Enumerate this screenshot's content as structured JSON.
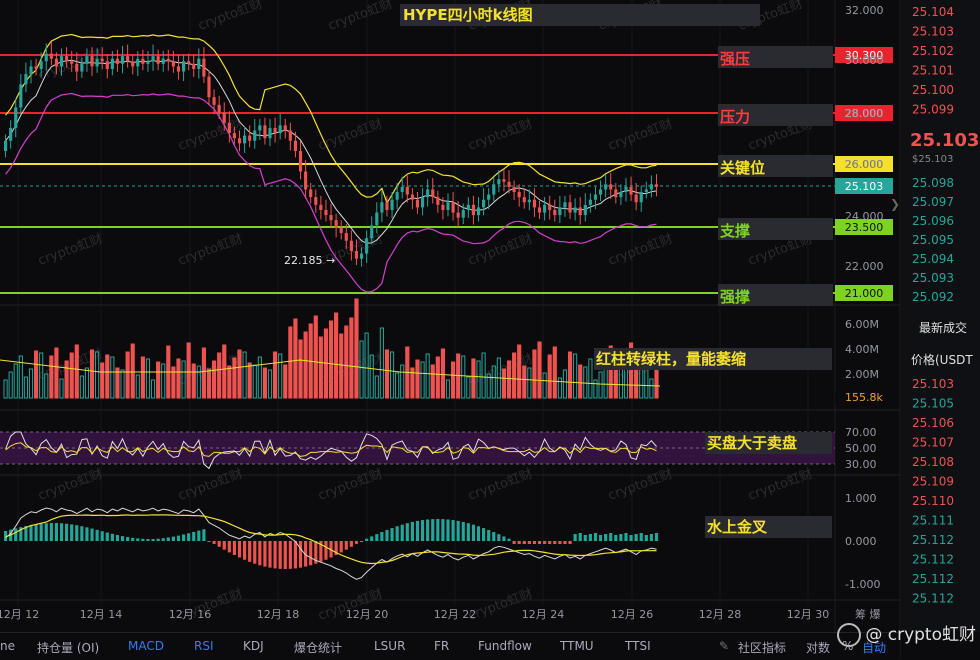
{
  "chart_data": {
    "type": "candlestick",
    "title": "HYPE四小时k线图",
    "x_tick_labels": [
      "12月 12",
      "12月 14",
      "12月 16",
      "12月 18",
      "12月 20",
      "12月 22",
      "12月 24",
      "12月 26",
      "12月 28",
      "12月 30"
    ],
    "price_axis_labels": [
      "32.000",
      "30.000",
      "28.000",
      "26.000",
      "24.000",
      "22.000"
    ],
    "volume_axis_labels": [
      "6.00M",
      "4.00M",
      "2.00M"
    ],
    "rsi_axis_labels": [
      "70.00",
      "50.00",
      "30.00"
    ],
    "macd_axis_labels": [
      "1.000",
      "0.000",
      "-1.000"
    ],
    "levels": [
      {
        "name": "强压",
        "value": "30.300",
        "color": "#e8252e"
      },
      {
        "name": "压力",
        "value": "28.000",
        "color": "#e8252e"
      },
      {
        "name": "关键位",
        "value": "26.000",
        "color": "#f5e12c"
      },
      {
        "name": "支撑",
        "value": "23.500",
        "color": "#7ed321"
      },
      {
        "name": "强撑",
        "value": "21.000",
        "color": "#7ed321"
      }
    ],
    "current_price_tag": "25.103",
    "low_marker": "22.185 →",
    "volume_tag": "155.8k",
    "annotations": {
      "volume": "红柱转绿柱，量能萎缩",
      "rsi": "买盘大于卖盘",
      "macd": "水上金叉"
    },
    "watermark": "crypto虹财",
    "colors": {
      "up": "#26a69a",
      "down": "#ef5350",
      "ma_yellow": "#f5e12c",
      "ma_pink": "#d53fd0",
      "ma_white": "#d8d8d8"
    }
  },
  "orderbook": {
    "asks": [
      "25.104",
      "25.103",
      "25.102",
      "25.101",
      "25.100",
      "25.099"
    ],
    "last_price": "25.103",
    "last_price_sub": "$25.103",
    "bids": [
      "25.098",
      "25.097",
      "25.096",
      "25.095",
      "25.094",
      "25.093",
      "25.092"
    ],
    "trades_title": "最新成交",
    "trades_header": "价格(USDT",
    "trades": [
      {
        "p": "25.103",
        "c": "#ef5350"
      },
      {
        "p": "25.105",
        "c": "#26a69a"
      },
      {
        "p": "25.106",
        "c": "#ef5350"
      },
      {
        "p": "25.107",
        "c": "#ef5350"
      },
      {
        "p": "25.108",
        "c": "#ef5350"
      },
      {
        "p": "25.109",
        "c": "#ef5350"
      },
      {
        "p": "25.110",
        "c": "#ef5350"
      },
      {
        "p": "25.111",
        "c": "#26a69a"
      },
      {
        "p": "25.112",
        "c": "#26a69a"
      },
      {
        "p": "25.112",
        "c": "#26a69a"
      },
      {
        "p": "25.112",
        "c": "#26a69a"
      },
      {
        "p": "25.112",
        "c": "#26a69a"
      }
    ]
  },
  "toolbar": {
    "items": [
      "ne",
      "持仓量 (OI)",
      "MACD",
      "RSI",
      "KDJ",
      "爆仓统计",
      "LSUR",
      "FR",
      "Fundflow",
      "TTMU",
      "TTSI",
      "社区指标",
      "对数",
      "%",
      "自动"
    ],
    "right_corner": "筹 爆"
  },
  "brand": "@ crypto虹财"
}
